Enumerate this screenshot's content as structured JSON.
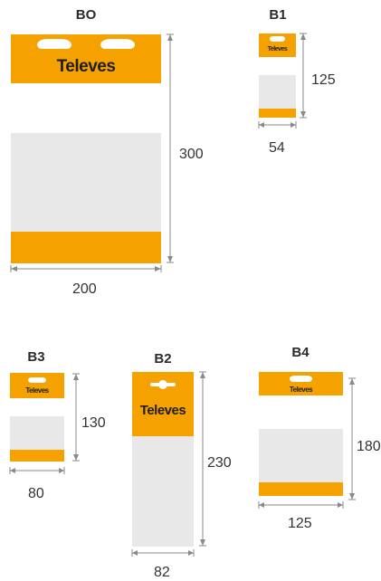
{
  "colors": {
    "orange": "#f5a200",
    "white": "#ffffff",
    "grey": "#e8e8e8",
    "line": "#8a8a8a"
  },
  "brand": "Televes",
  "packages": {
    "b0": {
      "title": "BO",
      "width": "200",
      "height": "300"
    },
    "b1": {
      "title": "B1",
      "width": "54",
      "height": "125"
    },
    "b3": {
      "title": "B3",
      "width": "80",
      "height": "130"
    },
    "b2": {
      "title": "B2",
      "width": "82",
      "height": "230"
    },
    "b4": {
      "title": "B4",
      "width": "125",
      "height": "180"
    }
  }
}
